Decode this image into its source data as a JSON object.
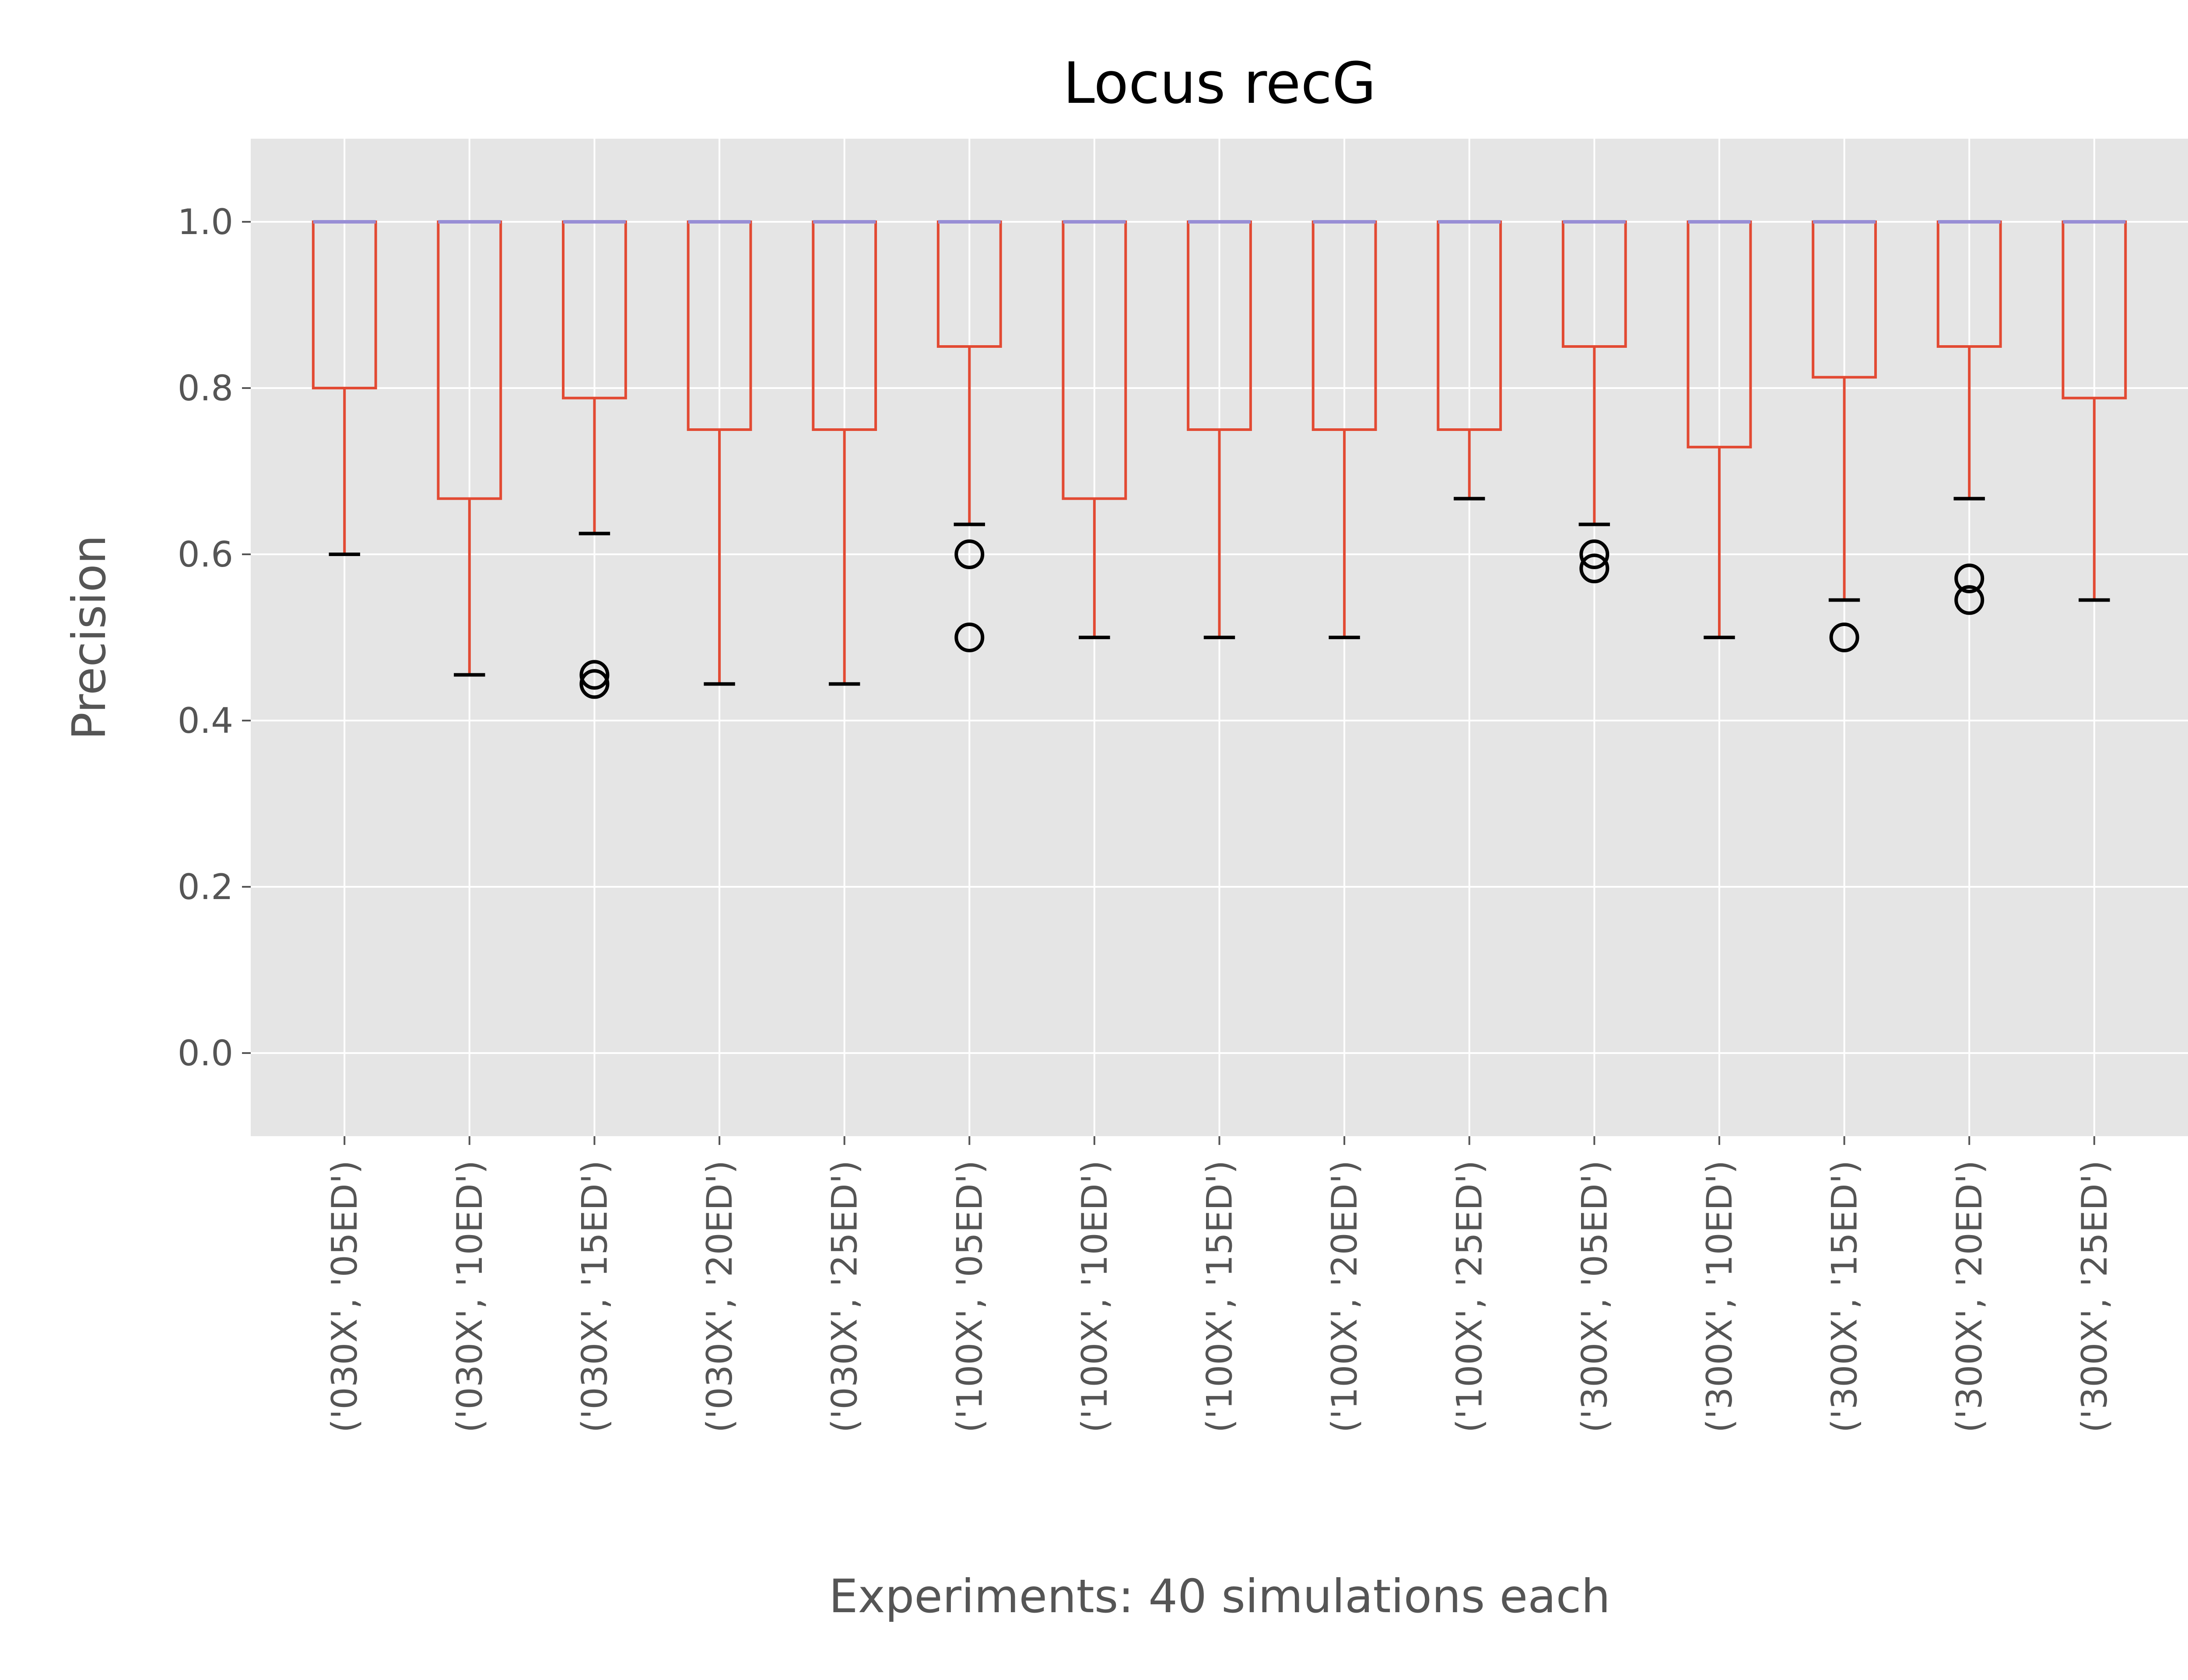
{
  "chart_data": {
    "type": "box",
    "title": "Locus recG",
    "xlabel": "Experiments: 40 simulations each",
    "ylabel": "Precision",
    "ylim": [
      -0.1,
      1.1
    ],
    "yticks": [
      0.0,
      0.2,
      0.4,
      0.6,
      0.8,
      1.0
    ],
    "ytick_labels": [
      "0.0",
      "0.2",
      "0.4",
      "0.6",
      "0.8",
      "1.0"
    ],
    "grid": true,
    "legend": "none",
    "colors": {
      "background": "#e5e5e5",
      "grid": "#ffffff",
      "box": "#e24a33",
      "median": "#988ed5",
      "whisker": "#e24a33",
      "cap": "#000000",
      "outlier": "#000000"
    },
    "categories": [
      "('030X', '05ED')",
      "('030X', '10ED')",
      "('030X', '15ED')",
      "('030X', '20ED')",
      "('030X', '25ED')",
      "('100X', '05ED')",
      "('100X', '10ED')",
      "('100X', '15ED')",
      "('100X', '20ED')",
      "('100X', '25ED')",
      "('300X', '05ED')",
      "('300X', '10ED')",
      "('300X', '15ED')",
      "('300X', '20ED')",
      "('300X', '25ED')"
    ],
    "boxes": [
      {
        "whislo": 0.6,
        "q1": 0.8,
        "median": 1.0,
        "q3": 1.0,
        "whishi": 1.0,
        "fliers": []
      },
      {
        "whislo": 0.455,
        "q1": 0.667,
        "median": 1.0,
        "q3": 1.0,
        "whishi": 1.0,
        "fliers": []
      },
      {
        "whislo": 0.625,
        "q1": 0.788,
        "median": 1.0,
        "q3": 1.0,
        "whishi": 1.0,
        "fliers": [
          0.455,
          0.444
        ]
      },
      {
        "whislo": 0.444,
        "q1": 0.75,
        "median": 1.0,
        "q3": 1.0,
        "whishi": 1.0,
        "fliers": []
      },
      {
        "whislo": 0.444,
        "q1": 0.75,
        "median": 1.0,
        "q3": 1.0,
        "whishi": 1.0,
        "fliers": []
      },
      {
        "whislo": 0.636,
        "q1": 0.85,
        "median": 1.0,
        "q3": 1.0,
        "whishi": 1.0,
        "fliers": [
          0.6,
          0.5
        ]
      },
      {
        "whislo": 0.5,
        "q1": 0.667,
        "median": 1.0,
        "q3": 1.0,
        "whishi": 1.0,
        "fliers": []
      },
      {
        "whislo": 0.5,
        "q1": 0.75,
        "median": 1.0,
        "q3": 1.0,
        "whishi": 1.0,
        "fliers": []
      },
      {
        "whislo": 0.5,
        "q1": 0.75,
        "median": 1.0,
        "q3": 1.0,
        "whishi": 1.0,
        "fliers": []
      },
      {
        "whislo": 0.667,
        "q1": 0.75,
        "median": 1.0,
        "q3": 1.0,
        "whishi": 1.0,
        "fliers": []
      },
      {
        "whislo": 0.636,
        "q1": 0.85,
        "median": 1.0,
        "q3": 1.0,
        "whishi": 1.0,
        "fliers": [
          0.6,
          0.583
        ]
      },
      {
        "whislo": 0.5,
        "q1": 0.729,
        "median": 1.0,
        "q3": 1.0,
        "whishi": 1.0,
        "fliers": []
      },
      {
        "whislo": 0.545,
        "q1": 0.813,
        "median": 1.0,
        "q3": 1.0,
        "whishi": 1.0,
        "fliers": [
          0.5
        ]
      },
      {
        "whislo": 0.667,
        "q1": 0.85,
        "median": 1.0,
        "q3": 1.0,
        "whishi": 1.0,
        "fliers": [
          0.571,
          0.545
        ]
      },
      {
        "whislo": 0.545,
        "q1": 0.788,
        "median": 1.0,
        "q3": 1.0,
        "whishi": 1.0,
        "fliers": []
      }
    ]
  }
}
